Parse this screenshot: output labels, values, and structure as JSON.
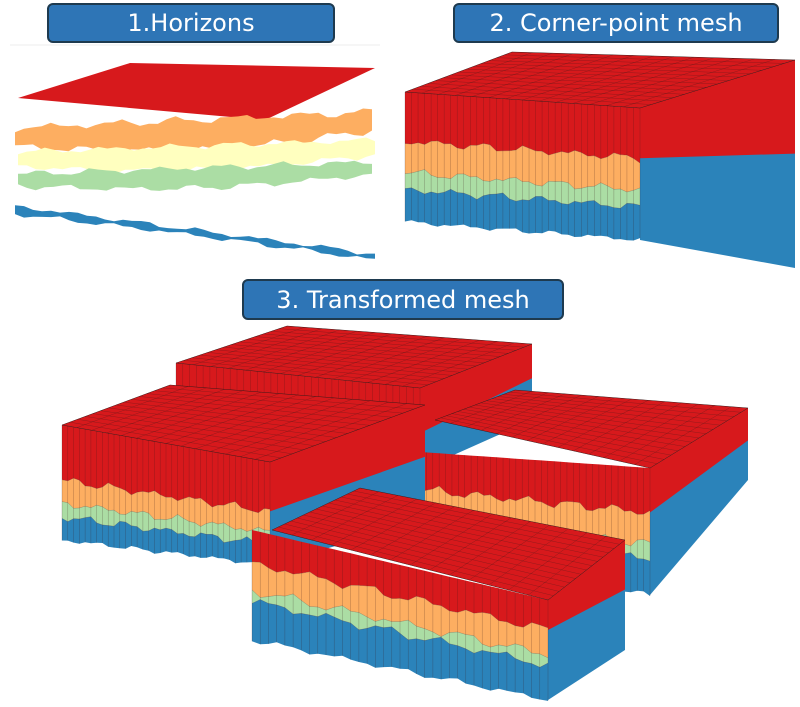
{
  "panels": {
    "horizons": {
      "title": "1.Horizons"
    },
    "corner_point": {
      "title": "2. Corner-point mesh"
    },
    "transformed": {
      "title": "3. Transformed mesh"
    }
  },
  "colors": {
    "badge": "#2e75b6",
    "red": "#d7191c",
    "orange": "#fdae61",
    "yellow": "#ffffbf",
    "green": "#abdda4",
    "blue": "#2b83ba",
    "mesh_line": "#3a1a1a"
  }
}
